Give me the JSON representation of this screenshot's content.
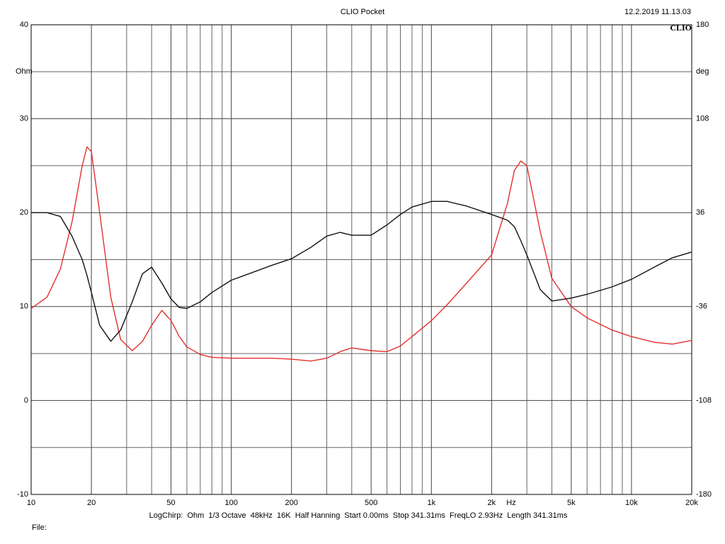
{
  "chart_data": {
    "type": "line",
    "title": "CLIO Pocket",
    "timestamp": "12.2.2019 11.13.03",
    "logo": "CLIO",
    "y_label": "Ohm",
    "y2_label": "deg",
    "x_label": "Hz",
    "settings_text": "LogChirp:  Ohm  1/3 Octave  48kHz  16K  Half Hanning  Start 0.00ms  Stop 341.31ms  FreqLO 2.93Hz  Length 341.31ms",
    "file_label": "File:",
    "x_log": true,
    "grid": true,
    "xlim": [
      10,
      20000
    ],
    "xticks": [
      10,
      20,
      50,
      100,
      200,
      500,
      {
        "value": 1000,
        "label": "1k"
      },
      {
        "value": 2000,
        "label": "2k"
      },
      {
        "value": 5000,
        "label": "5k"
      },
      {
        "value": 10000,
        "label": "10k"
      },
      {
        "value": 20000,
        "label": "20k"
      }
    ],
    "x_minor_ticks": [
      30,
      40,
      60,
      70,
      80,
      90,
      300,
      400,
      600,
      700,
      800,
      900,
      3000,
      4000,
      6000,
      7000,
      8000,
      9000
    ],
    "ylim": [
      -10,
      40
    ],
    "yticks": [
      -10,
      0,
      10,
      20,
      30,
      40
    ],
    "y_minor_ticks": [
      -5,
      5,
      15,
      25,
      35
    ],
    "y2lim": [
      -180,
      180
    ],
    "y2ticks": [
      -180,
      -108,
      -36,
      36,
      108,
      180
    ],
    "x": [
      10,
      12,
      14,
      16,
      18,
      19,
      20,
      22,
      25,
      28,
      32,
      36,
      40,
      45,
      50,
      55,
      60,
      70,
      80,
      100,
      130,
      160,
      200,
      250,
      300,
      350,
      400,
      500,
      600,
      700,
      800,
      1000,
      1200,
      1500,
      2000,
      2400,
      2600,
      2800,
      3000,
      3500,
      4000,
      5000,
      6000,
      8000,
      10000,
      13000,
      16000,
      20000
    ],
    "series": [
      {
        "color": "#e2302d",
        "values": [
          9.8,
          11,
          14,
          19,
          25,
          27,
          26.5,
          20,
          11,
          6.5,
          5.3,
          6.3,
          8,
          9.6,
          8.5,
          6.8,
          5.7,
          4.9,
          4.6,
          4.5,
          4.5,
          4.5,
          4.4,
          4.2,
          4.5,
          5.2,
          5.6,
          5.3,
          5.2,
          5.8,
          6.8,
          8.5,
          10.2,
          12.5,
          15.5,
          21,
          24.5,
          25.5,
          25,
          18,
          13,
          10,
          8.8,
          7.5,
          6.8,
          6.2,
          6.0,
          6.4
        ]
      },
      {
        "color": "#111111",
        "axis": "y2",
        "values": [
          36,
          36,
          33.1,
          18,
          0,
          -12,
          -25.2,
          -50.4,
          -62.6,
          -54,
          -32.4,
          -10.8,
          -5.8,
          -18,
          -30.2,
          -36.7,
          -37.4,
          -32.4,
          -25.2,
          -15.8,
          -9.4,
          -4.3,
          0.7,
          9.4,
          18,
          20.9,
          18.7,
          18.7,
          26.6,
          34.6,
          40.3,
          44.6,
          44.6,
          41,
          34.6,
          30.2,
          25.2,
          14.4,
          3.6,
          -23,
          -31.7,
          -29.5,
          -26.6,
          -20.9,
          -15.1,
          -5.8,
          1.4,
          5.8
        ]
      }
    ]
  }
}
